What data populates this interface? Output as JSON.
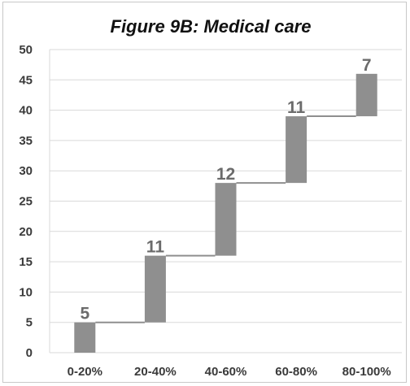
{
  "chart_data": {
    "type": "bar",
    "subtype": "waterfall",
    "title": "Figure 9B: Medical care",
    "xlabel": "",
    "ylabel": "",
    "categories": [
      "0-20%",
      "20-40%",
      "40-60%",
      "60-80%",
      "80-100%"
    ],
    "values": [
      5,
      11,
      12,
      11,
      7
    ],
    "ylim": [
      0,
      50
    ],
    "yticks": [
      0,
      5,
      10,
      15,
      20,
      25,
      30,
      35,
      40,
      45,
      50
    ],
    "grid": true,
    "legend": "none",
    "colors": {
      "bar": "#8f8f8f",
      "connector": "#8f8f8f",
      "grid": "#d9d9d9",
      "label": "#6b6b6b"
    }
  }
}
